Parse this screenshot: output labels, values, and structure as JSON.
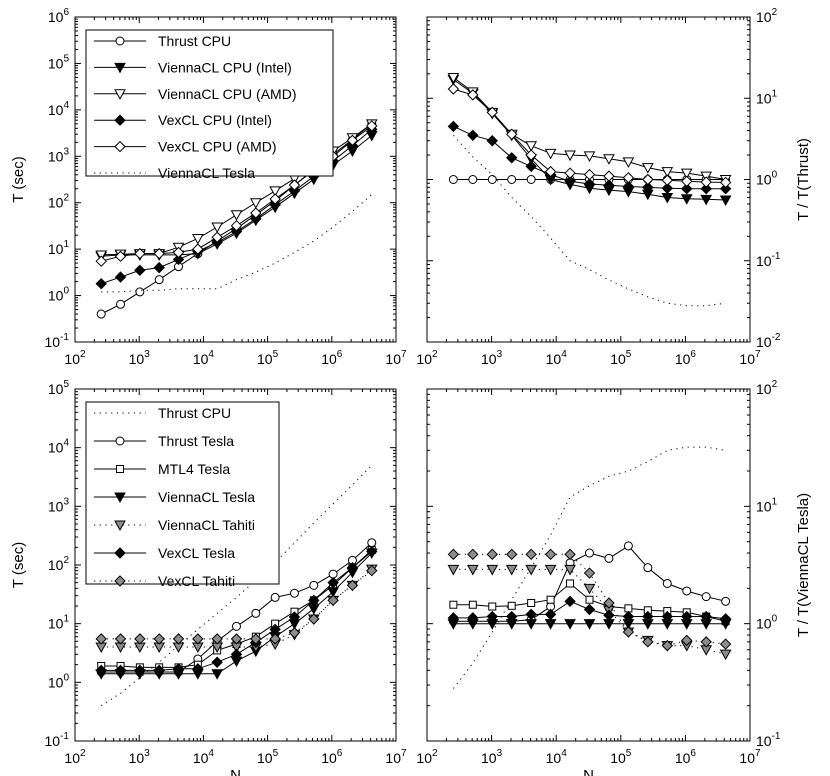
{
  "chart_data": [
    {
      "type": "line",
      "panel": "top-left",
      "xlabel": "",
      "ylabel": "T (sec)",
      "xlog": true,
      "ylog": true,
      "xlim_exp": [
        2,
        7
      ],
      "ylim_exp": [
        -1,
        6
      ],
      "ylabel_side": "left",
      "legend_position": "top-left",
      "x": [
        256,
        512,
        1024,
        2048,
        4096,
        8192,
        16384,
        32768,
        65536,
        131072,
        262144,
        524288,
        1048576,
        2097152,
        4194304
      ],
      "series": [
        {
          "name": "Thrust CPU",
          "line": "solid",
          "marker": "circle",
          "fill": "white",
          "values": [
            0.4,
            0.65,
            1.2,
            2.2,
            4.2,
            8,
            15,
            28,
            55,
            110,
            240,
            520,
            1100,
            2300,
            5000
          ]
        },
        {
          "name": "ViennaCL CPU (Intel)",
          "line": "solid",
          "marker": "triangle-down",
          "fill": "black",
          "values": [
            7,
            7.5,
            7.5,
            7.5,
            7.5,
            8,
            13,
            22,
            42,
            80,
            160,
            320,
            650,
            1300,
            2800
          ]
        },
        {
          "name": "ViennaCL CPU (AMD)",
          "line": "solid",
          "marker": "triangle-down",
          "fill": "white",
          "values": [
            7.5,
            7.8,
            8,
            8,
            11,
            17,
            30,
            55,
            100,
            180,
            330,
            650,
            1300,
            2500,
            5000
          ]
        },
        {
          "name": "VexCL CPU (Intel)",
          "line": "solid",
          "marker": "diamond",
          "fill": "black",
          "values": [
            1.8,
            2.5,
            3.5,
            4,
            6,
            9,
            14,
            24,
            45,
            90,
            180,
            370,
            800,
            1700,
            3800
          ]
        },
        {
          "name": "VexCL CPU (AMD)",
          "line": "solid",
          "marker": "diamond",
          "fill": "white",
          "values": [
            5.5,
            7,
            8,
            8,
            8.5,
            10,
            18,
            32,
            60,
            120,
            240,
            500,
            1000,
            2200,
            4500
          ]
        },
        {
          "name": "ViennaCL Tesla",
          "line": "dotted",
          "marker": "none",
          "fill": "none",
          "values": [
            1.2,
            1.2,
            1.3,
            1.3,
            1.4,
            1.4,
            1.4,
            2.2,
            3.2,
            5,
            8.5,
            15,
            30,
            65,
            150
          ]
        }
      ]
    },
    {
      "type": "line",
      "panel": "top-right",
      "xlabel": "",
      "ylabel": "T / T(Thrust)",
      "xlog": true,
      "ylog": true,
      "xlim_exp": [
        2,
        7
      ],
      "ylim_exp": [
        -2,
        2
      ],
      "ylabel_side": "right",
      "x": [
        256,
        512,
        1024,
        2048,
        4096,
        8192,
        16384,
        32768,
        65536,
        131072,
        262144,
        524288,
        1048576,
        2097152,
        4194304
      ],
      "series": [
        {
          "name": "Thrust CPU",
          "line": "solid",
          "marker": "circle",
          "fill": "white",
          "values": [
            1,
            1,
            1,
            1,
            1,
            1,
            1,
            1,
            1,
            1,
            1,
            1,
            1,
            1,
            1
          ]
        },
        {
          "name": "ViennaCL CPU (Intel)",
          "line": "solid",
          "marker": "triangle-down",
          "fill": "black",
          "values": [
            17,
            11.5,
            6.5,
            3.5,
            1.8,
            1.0,
            0.87,
            0.78,
            0.74,
            0.71,
            0.66,
            0.6,
            0.58,
            0.57,
            0.56
          ]
        },
        {
          "name": "ViennaCL CPU (AMD)",
          "line": "solid",
          "marker": "triangle-down",
          "fill": "white",
          "values": [
            18,
            12,
            6.7,
            3.6,
            2.6,
            2.1,
            2.0,
            1.95,
            1.8,
            1.65,
            1.4,
            1.25,
            1.2,
            1.1,
            1.0
          ]
        },
        {
          "name": "VexCL CPU (Intel)",
          "line": "solid",
          "marker": "diamond",
          "fill": "black",
          "values": [
            4.5,
            3.5,
            3.0,
            1.85,
            1.45,
            1.15,
            0.95,
            0.88,
            0.85,
            0.82,
            0.8,
            0.78,
            0.77,
            0.77,
            0.77
          ]
        },
        {
          "name": "VexCL CPU (AMD)",
          "line": "solid",
          "marker": "diamond",
          "fill": "white",
          "values": [
            13,
            11,
            6.7,
            3.6,
            2.0,
            1.25,
            1.2,
            1.15,
            1.1,
            1.05,
            1.0,
            0.98,
            0.95,
            0.93,
            0.92
          ]
        },
        {
          "name": "ViennaCL Tesla",
          "line": "dotted",
          "marker": "none",
          "fill": "none",
          "values": [
            3.5,
            1.9,
            1.15,
            0.6,
            0.35,
            0.19,
            0.1,
            0.078,
            0.058,
            0.045,
            0.036,
            0.03,
            0.028,
            0.028,
            0.03
          ]
        }
      ]
    },
    {
      "type": "line",
      "panel": "bottom-left",
      "xlabel": "N",
      "ylabel": "T (sec)",
      "xlog": true,
      "ylog": true,
      "xlim_exp": [
        2,
        7
      ],
      "ylim_exp": [
        -1,
        5
      ],
      "ylabel_side": "left",
      "legend_position": "top-left",
      "x": [
        256,
        512,
        1024,
        2048,
        4096,
        8192,
        16384,
        32768,
        65536,
        131072,
        262144,
        524288,
        1048576,
        2097152,
        4194304
      ],
      "series": [
        {
          "name": "Thrust CPU",
          "line": "dotted",
          "marker": "none",
          "fill": "none",
          "values": [
            0.4,
            0.65,
            1.2,
            2.2,
            4.2,
            8,
            15,
            28,
            55,
            110,
            240,
            520,
            1100,
            2300,
            5000
          ]
        },
        {
          "name": "Thrust Tesla",
          "line": "solid",
          "marker": "circle",
          "fill": "white",
          "values": [
            1.5,
            1.5,
            1.5,
            1.5,
            1.5,
            2.5,
            5,
            9,
            15,
            28,
            33,
            45,
            70,
            120,
            240
          ]
        },
        {
          "name": "MTL4 Tesla",
          "line": "solid",
          "marker": "square",
          "fill": "white",
          "values": [
            1.9,
            1.9,
            1.8,
            1.8,
            1.8,
            2,
            3.5,
            4.5,
            6,
            10,
            16,
            25,
            45,
            90,
            180
          ]
        },
        {
          "name": "ViennaCL Tesla",
          "line": "solid",
          "marker": "triangle-down",
          "fill": "black",
          "values": [
            1.4,
            1.4,
            1.4,
            1.4,
            1.4,
            1.4,
            1.4,
            2.3,
            3.4,
            6,
            10,
            18,
            35,
            75,
            160
          ]
        },
        {
          "name": "ViennaCL Tahiti",
          "line": "dotted",
          "marker": "triangle-down",
          "fill": "gray",
          "values": [
            4,
            4,
            4,
            4,
            4,
            4,
            4,
            4,
            4,
            4.5,
            6.5,
            12,
            25,
            45,
            85
          ]
        },
        {
          "name": "VexCL Tesla",
          "line": "solid",
          "marker": "diamond",
          "fill": "black",
          "values": [
            1.6,
            1.6,
            1.6,
            1.6,
            1.7,
            1.7,
            2.2,
            3,
            4.8,
            8,
            13,
            25,
            50,
            90,
            170
          ]
        },
        {
          "name": "VexCL Tahiti",
          "line": "dotted",
          "marker": "diamond",
          "fill": "gray",
          "values": [
            5.5,
            5.5,
            5.5,
            5.5,
            5.5,
            5.5,
            5.5,
            5.5,
            5.5,
            5.5,
            7,
            12,
            25,
            45,
            80
          ]
        }
      ]
    },
    {
      "type": "line",
      "panel": "bottom-right",
      "xlabel": "N",
      "ylabel": "T / T(ViennaCL Tesla)",
      "xlog": true,
      "ylog": true,
      "xlim_exp": [
        2,
        7
      ],
      "ylim_exp": [
        -1,
        2
      ],
      "ylabel_side": "right",
      "x": [
        256,
        512,
        1024,
        2048,
        4096,
        8192,
        16384,
        32768,
        65536,
        131072,
        262144,
        524288,
        1048576,
        2097152,
        4194304
      ],
      "series": [
        {
          "name": "Thrust CPU",
          "line": "dotted",
          "marker": "none",
          "fill": "none",
          "values": [
            0.28,
            0.46,
            0.85,
            1.6,
            3.0,
            5.7,
            12,
            15,
            18,
            20,
            24,
            30,
            32,
            32,
            30
          ]
        },
        {
          "name": "Thrust Tesla",
          "line": "solid",
          "marker": "circle",
          "fill": "white",
          "values": [
            1.05,
            1.05,
            1.05,
            1.05,
            1.08,
            1.4,
            3.3,
            4.0,
            3.6,
            4.6,
            3.0,
            2.2,
            1.9,
            1.7,
            1.55
          ]
        },
        {
          "name": "MTL4 Tesla",
          "line": "solid",
          "marker": "square",
          "fill": "white",
          "values": [
            1.45,
            1.45,
            1.4,
            1.42,
            1.5,
            1.6,
            2.2,
            1.6,
            1.4,
            1.35,
            1.3,
            1.28,
            1.25,
            1.15,
            1.05
          ]
        },
        {
          "name": "ViennaCL Tesla",
          "line": "solid",
          "marker": "triangle-down",
          "fill": "black",
          "values": [
            1,
            1,
            1,
            1,
            1,
            1,
            1,
            1,
            1,
            1,
            1,
            1,
            1,
            1,
            1
          ]
        },
        {
          "name": "ViennaCL Tahiti",
          "line": "dotted",
          "marker": "triangle-down",
          "fill": "gray",
          "values": [
            2.9,
            2.9,
            2.9,
            2.9,
            2.9,
            2.9,
            2.9,
            2.0,
            1.3,
            0.85,
            0.72,
            0.65,
            0.65,
            0.6,
            0.55
          ]
        },
        {
          "name": "VexCL Tesla",
          "line": "solid",
          "marker": "diamond",
          "fill": "black",
          "values": [
            1.12,
            1.12,
            1.15,
            1.15,
            1.2,
            1.2,
            1.55,
            1.32,
            1.18,
            1.15,
            1.15,
            1.15,
            1.15,
            1.15,
            1.1
          ]
        },
        {
          "name": "VexCL Tahiti",
          "line": "dotted",
          "marker": "diamond",
          "fill": "gray",
          "values": [
            3.9,
            3.9,
            3.9,
            3.9,
            3.9,
            3.9,
            3.9,
            2.7,
            1.5,
            0.85,
            0.7,
            0.65,
            0.72,
            0.7,
            0.67
          ]
        }
      ]
    }
  ]
}
